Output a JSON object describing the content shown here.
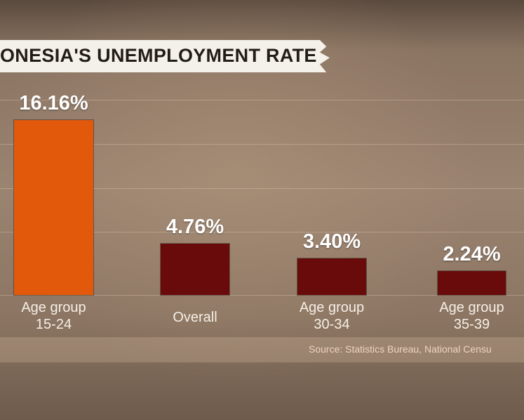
{
  "chart_data": {
    "type": "bar",
    "title": "ONESIA'S UNEMPLOYMENT RATE",
    "categories": [
      "Age group\n15-24",
      "Overall",
      "Age group\n30-34",
      "Age group\n35-39"
    ],
    "values": [
      16.16,
      4.76,
      3.4,
      2.24
    ],
    "value_labels": [
      "16.16%",
      "4.76%",
      "3.40%",
      "2.24%"
    ],
    "colors": [
      "#e2590b",
      "#6a0b0b",
      "#6a0b0b",
      "#6a0b0b"
    ],
    "source": "Source: Statistics Bureau, National Censu"
  }
}
